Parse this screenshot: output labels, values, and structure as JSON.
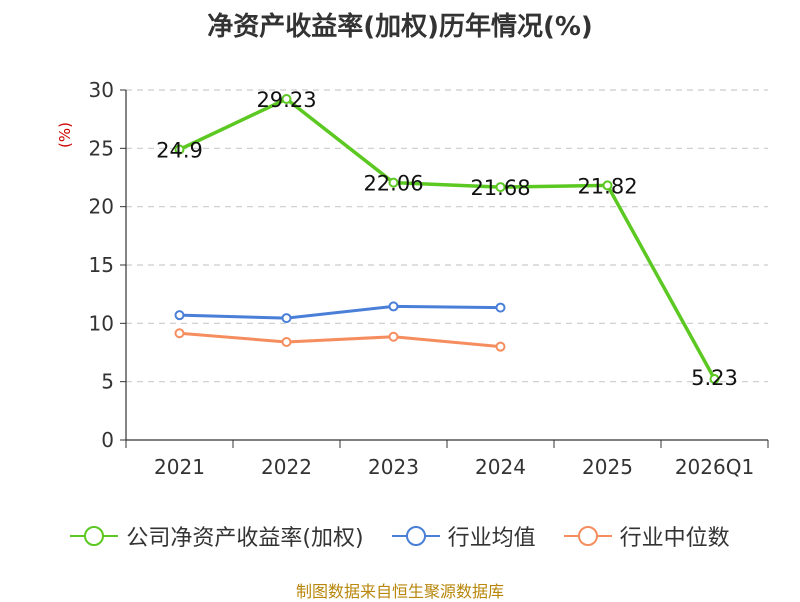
{
  "chart_data": {
    "type": "line",
    "title": "净资产收益率(加权)历年情况(%)",
    "ylabel": "(%)",
    "xlabel": "",
    "categories": [
      "2021",
      "2022",
      "2023",
      "2024",
      "2025",
      "2026Q1"
    ],
    "ylim": [
      0,
      30
    ],
    "yticks": [
      0,
      5,
      10,
      15,
      20,
      25,
      30
    ],
    "grid": true,
    "legend_position": "bottom",
    "series": [
      {
        "name": "公司净资产收益率(加权)",
        "color": "#5cc822",
        "values": [
          24.9,
          29.23,
          22.06,
          21.68,
          21.82,
          5.23
        ],
        "labels": [
          "24.9",
          "29.23",
          "22.06",
          "21.68",
          "21.82",
          "5.23"
        ]
      },
      {
        "name": "行业均值",
        "color": "#4a7fd8",
        "values": [
          10.7,
          10.45,
          11.45,
          11.35,
          null,
          null
        ]
      },
      {
        "name": "行业中位数",
        "color": "#f68d5f",
        "values": [
          9.15,
          8.4,
          8.85,
          8.0,
          null,
          null
        ]
      }
    ]
  },
  "source": "制图数据来自恒生聚源数据库"
}
